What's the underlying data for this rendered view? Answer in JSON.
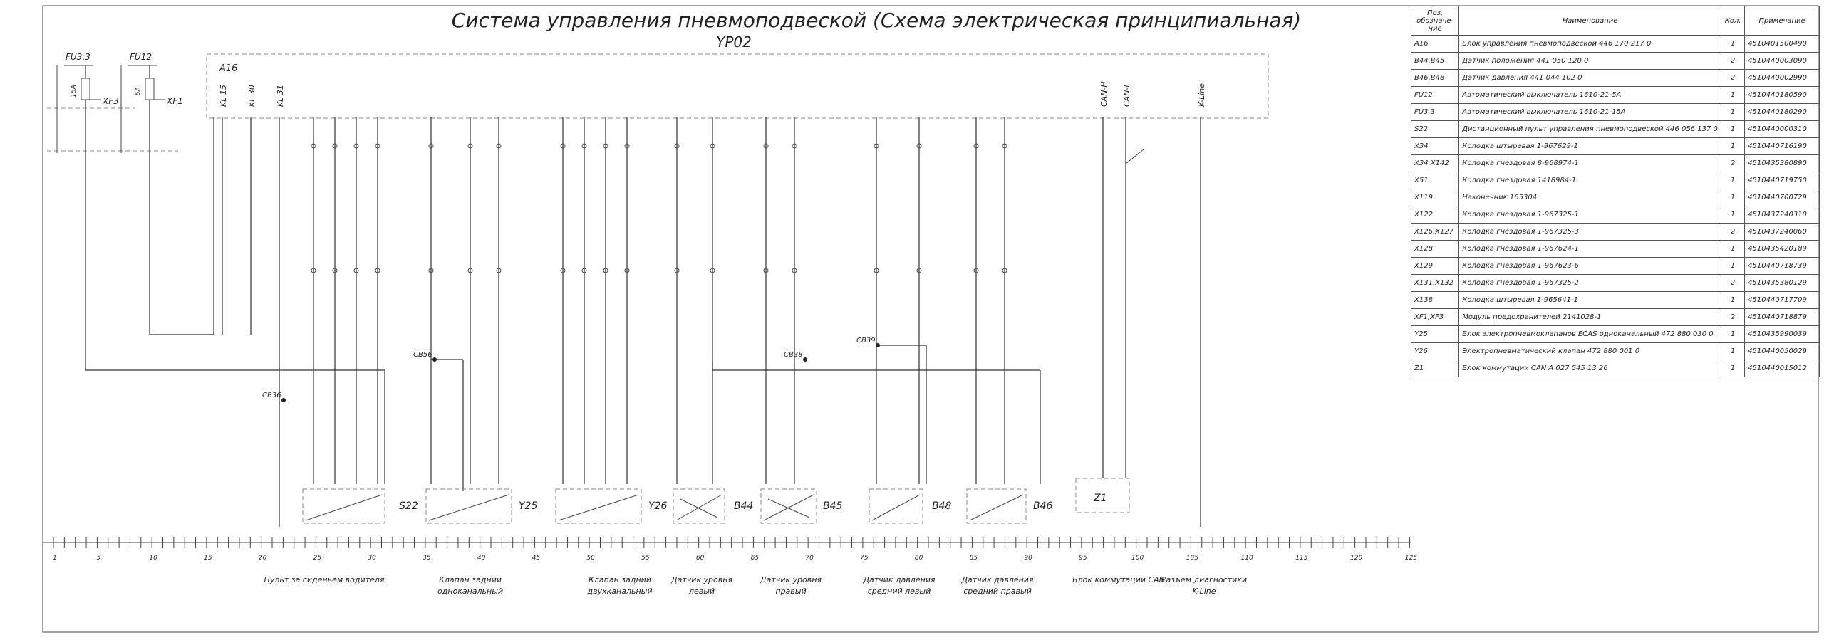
{
  "title": "Система управления пневмоподвеской (Схема электрическая принципиальная)",
  "subtitle": "YP02",
  "fuses": [
    {
      "label": "FU3.3",
      "rating": "15А",
      "module": "XF3"
    },
    {
      "label": "FU12",
      "rating": "5А",
      "module": "XF1"
    }
  ],
  "ecu": {
    "label": "A16",
    "pins": [
      "KL 15",
      "KL 30",
      "KL 31",
      "CAN-H",
      "CAN-L",
      "K-Line"
    ]
  },
  "splices": [
    "CB36",
    "CB56",
    "CB38",
    "CB39"
  ],
  "components": [
    "S22",
    "Y25",
    "Y26",
    "B44",
    "B45",
    "B48",
    "B46",
    "Z1"
  ],
  "ruler": [
    1,
    5,
    10,
    15,
    20,
    25,
    30,
    35,
    40,
    45,
    50,
    55,
    60,
    65,
    70,
    75,
    80,
    85,
    90,
    95,
    100,
    105,
    110,
    115,
    120,
    125
  ],
  "groups": [
    [
      "Пульт за сиденьем водителя"
    ],
    [
      "Клапан задний",
      "одноканальный"
    ],
    [
      "Клапан задний",
      "двухканальный"
    ],
    [
      "Датчик уровня",
      "левый"
    ],
    [
      "Датчик уровня",
      "правый"
    ],
    [
      "Датчик давления",
      "средний левый"
    ],
    [
      "Датчик давления",
      "средний правый"
    ],
    [
      "Блок коммутации CAN"
    ],
    [
      "Разъем диагностики",
      "K-Line"
    ]
  ],
  "table": {
    "header": [
      "Поз. обозначе- ние",
      "Наименование",
      "Кол.",
      "Примечание"
    ],
    "rows": [
      [
        "A16",
        "Блок управления пневмоподвеской 446 170 217 0",
        "1",
        "4510401500490"
      ],
      [
        "B44,B45",
        "Датчик положения 441 050 120 0",
        "2",
        "4510440003090"
      ],
      [
        "B46,B48",
        "Датчик давления 441 044 102 0",
        "2",
        "4510440002990"
      ],
      [
        "FU12",
        "Автоматический выключатель 1610-21-5А",
        "1",
        "4510440180590"
      ],
      [
        "FU3.3",
        "Автоматический выключатель 1610-21-15А",
        "1",
        "4510440180290"
      ],
      [
        "S22",
        "Дистанционный пульт управления пневмоподвеской 446 056 137 0",
        "1",
        "4510440000310"
      ],
      [
        "X34",
        "Колодка штыревая 1-967629-1",
        "1",
        "4510440716190"
      ],
      [
        "X34,X142",
        "Колодка гнездовая 8-968974-1",
        "2",
        "4510435380890"
      ],
      [
        "X51",
        "Колодка гнездовая 1418984-1",
        "1",
        "4510440719750"
      ],
      [
        "X119",
        "Наконечник 165304",
        "1",
        "4510440700729"
      ],
      [
        "X122",
        "Колодка гнездовая 1-967325-1",
        "1",
        "4510437240310"
      ],
      [
        "X126,X127",
        "Колодка гнездовая 1-967325-3",
        "2",
        "4510437240060"
      ],
      [
        "X128",
        "Колодка гнездовая 1-967624-1",
        "1",
        "4510435420189"
      ],
      [
        "X129",
        "Колодка гнездовая 1-967623-6",
        "1",
        "4510440718739"
      ],
      [
        "X131,X132",
        "Колодка гнездовая 1-967325-2",
        "2",
        "4510435380129"
      ],
      [
        "X138",
        "Колодка штыревая 1-965641-1",
        "1",
        "4510440717709"
      ],
      [
        "XF1,XF3",
        "Модуль предохранителей 2141028-1",
        "2",
        "4510440718879"
      ],
      [
        "Y25",
        "Блок электропневмоклапанов ECAS одноканальный 472 880 030 0",
        "1",
        "4510435990039"
      ],
      [
        "Y26",
        "Электропневматический клапан 472 880 001 0",
        "1",
        "4510440050029"
      ],
      [
        "Z1",
        "Блок коммутации CAN A 027 545 13 26",
        "1",
        "4510440015012"
      ]
    ]
  }
}
